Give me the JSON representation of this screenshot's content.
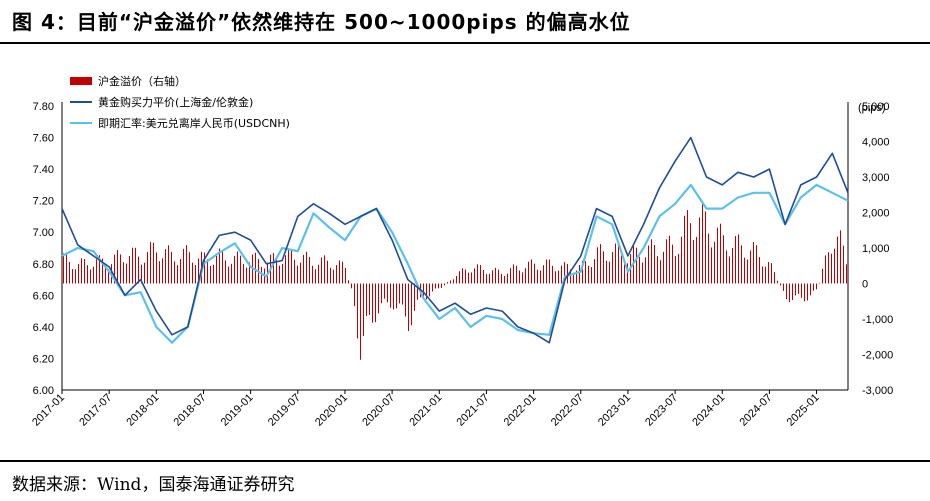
{
  "figure": {
    "title": "图 4：目前“沪金溢价”依然维持在 500~1000pips 的偏高水位",
    "source": "数据来源：Wind，国泰海通证券研究"
  },
  "chart_data": {
    "type": "line",
    "right_unit": "(pips)",
    "left_axis": {
      "ylim": [
        6.0,
        7.8
      ],
      "ticks": [
        "6.00",
        "6.20",
        "6.40",
        "6.60",
        "6.80",
        "7.00",
        "7.20",
        "7.40",
        "7.60",
        "7.80"
      ]
    },
    "right_axis": {
      "ylim": [
        -3000,
        5000
      ],
      "ticks": [
        "-3,000",
        "-2,000",
        "-1,000",
        "0",
        "1,000",
        "2,000",
        "3,000",
        "4,000",
        "5,000"
      ]
    },
    "x_ticks": [
      "2017-01",
      "2017-07",
      "2018-01",
      "2018-07",
      "2019-01",
      "2019-07",
      "2020-01",
      "2020-07",
      "2021-01",
      "2021-07",
      "2022-01",
      "2022-07",
      "2023-01",
      "2023-07",
      "2024-01",
      "2024-07",
      "2025-01"
    ],
    "x_range": [
      "2017-01",
      "2025-05"
    ],
    "legend_position": "top-left",
    "series": [
      {
        "name": "沪金溢价（右轴）",
        "type": "bar",
        "axis": "right",
        "color": "#c00000",
        "points": [
          [
            "2017-01",
            900
          ],
          [
            "2017-03",
            700
          ],
          [
            "2017-05",
            800
          ],
          [
            "2017-07",
            800
          ],
          [
            "2017-09",
            1100
          ],
          [
            "2017-11",
            1000
          ],
          [
            "2018-01",
            1300
          ],
          [
            "2018-03",
            1000
          ],
          [
            "2018-05",
            1100
          ],
          [
            "2018-07",
            900
          ],
          [
            "2018-09",
            1000
          ],
          [
            "2018-11",
            900
          ],
          [
            "2019-01",
            900
          ],
          [
            "2019-03",
            800
          ],
          [
            "2019-05",
            1000
          ],
          [
            "2019-07",
            1000
          ],
          [
            "2019-09",
            800
          ],
          [
            "2019-11",
            800
          ],
          [
            "2020-01",
            600
          ],
          [
            "2020-02",
            -500
          ],
          [
            "2020-03",
            -2500
          ],
          [
            "2020-04",
            -1500
          ],
          [
            "2020-05",
            -1000
          ],
          [
            "2020-07",
            -700
          ],
          [
            "2020-09",
            -1400
          ],
          [
            "2020-11",
            -500
          ],
          [
            "2021-01",
            -200
          ],
          [
            "2021-03",
            300
          ],
          [
            "2021-05",
            600
          ],
          [
            "2021-07",
            500
          ],
          [
            "2021-09",
            400
          ],
          [
            "2021-11",
            600
          ],
          [
            "2022-01",
            700
          ],
          [
            "2022-03",
            700
          ],
          [
            "2022-05",
            600
          ],
          [
            "2022-07",
            600
          ],
          [
            "2022-09",
            1100
          ],
          [
            "2022-11",
            1200
          ],
          [
            "2023-01",
            1000
          ],
          [
            "2023-03",
            1200
          ],
          [
            "2023-05",
            1300
          ],
          [
            "2023-07",
            1400
          ],
          [
            "2023-09",
            2400
          ],
          [
            "2023-11",
            2200
          ],
          [
            "2024-01",
            1600
          ],
          [
            "2024-03",
            1400
          ],
          [
            "2024-05",
            1200
          ],
          [
            "2024-07",
            700
          ],
          [
            "2024-09",
            -500
          ],
          [
            "2024-11",
            -600
          ],
          [
            "2025-01",
            -300
          ],
          [
            "2025-03",
            1800
          ],
          [
            "2025-04",
            1500
          ],
          [
            "2025-05",
            600
          ]
        ]
      },
      {
        "name": "黄金购买力平价(上海金/伦敦金)",
        "type": "line",
        "axis": "left",
        "color": "#1f4e96",
        "points": [
          [
            "2017-01",
            7.15
          ],
          [
            "2017-03",
            6.92
          ],
          [
            "2017-05",
            6.85
          ],
          [
            "2017-07",
            6.78
          ],
          [
            "2017-09",
            6.6
          ],
          [
            "2017-11",
            6.7
          ],
          [
            "2018-01",
            6.5
          ],
          [
            "2018-03",
            6.35
          ],
          [
            "2018-05",
            6.4
          ],
          [
            "2018-07",
            6.82
          ],
          [
            "2018-09",
            6.98
          ],
          [
            "2018-11",
            7.0
          ],
          [
            "2019-01",
            6.95
          ],
          [
            "2019-03",
            6.8
          ],
          [
            "2019-05",
            6.82
          ],
          [
            "2019-07",
            7.1
          ],
          [
            "2019-09",
            7.18
          ],
          [
            "2019-11",
            7.12
          ],
          [
            "2020-01",
            7.05
          ],
          [
            "2020-03",
            7.1
          ],
          [
            "2020-05",
            7.15
          ],
          [
            "2020-07",
            6.95
          ],
          [
            "2020-09",
            6.7
          ],
          [
            "2020-11",
            6.62
          ],
          [
            "2021-01",
            6.5
          ],
          [
            "2021-03",
            6.55
          ],
          [
            "2021-05",
            6.48
          ],
          [
            "2021-07",
            6.52
          ],
          [
            "2021-09",
            6.5
          ],
          [
            "2021-11",
            6.4
          ],
          [
            "2022-01",
            6.36
          ],
          [
            "2022-03",
            6.3
          ],
          [
            "2022-05",
            6.7
          ],
          [
            "2022-07",
            6.85
          ],
          [
            "2022-09",
            7.15
          ],
          [
            "2022-11",
            7.1
          ],
          [
            "2023-01",
            6.85
          ],
          [
            "2023-03",
            7.05
          ],
          [
            "2023-05",
            7.28
          ],
          [
            "2023-07",
            7.45
          ],
          [
            "2023-09",
            7.6
          ],
          [
            "2023-11",
            7.35
          ],
          [
            "2024-01",
            7.3
          ],
          [
            "2024-03",
            7.38
          ],
          [
            "2024-05",
            7.35
          ],
          [
            "2024-07",
            7.4
          ],
          [
            "2024-09",
            7.05
          ],
          [
            "2024-11",
            7.3
          ],
          [
            "2025-01",
            7.35
          ],
          [
            "2025-03",
            7.5
          ],
          [
            "2025-05",
            7.25
          ]
        ]
      },
      {
        "name": "即期汇率:美元兑离岸人民币(USDCNH)",
        "type": "line",
        "axis": "left",
        "color": "#5bc0eb",
        "points": [
          [
            "2017-01",
            6.85
          ],
          [
            "2017-03",
            6.9
          ],
          [
            "2017-05",
            6.88
          ],
          [
            "2017-07",
            6.75
          ],
          [
            "2017-09",
            6.6
          ],
          [
            "2017-11",
            6.62
          ],
          [
            "2018-01",
            6.4
          ],
          [
            "2018-03",
            6.3
          ],
          [
            "2018-05",
            6.4
          ],
          [
            "2018-07",
            6.8
          ],
          [
            "2018-09",
            6.87
          ],
          [
            "2018-11",
            6.93
          ],
          [
            "2019-01",
            6.78
          ],
          [
            "2019-03",
            6.72
          ],
          [
            "2019-05",
            6.9
          ],
          [
            "2019-07",
            6.88
          ],
          [
            "2019-09",
            7.12
          ],
          [
            "2019-11",
            7.03
          ],
          [
            "2020-01",
            6.95
          ],
          [
            "2020-03",
            7.1
          ],
          [
            "2020-05",
            7.15
          ],
          [
            "2020-07",
            7.0
          ],
          [
            "2020-09",
            6.8
          ],
          [
            "2020-11",
            6.58
          ],
          [
            "2021-01",
            6.45
          ],
          [
            "2021-03",
            6.52
          ],
          [
            "2021-05",
            6.4
          ],
          [
            "2021-07",
            6.47
          ],
          [
            "2021-09",
            6.45
          ],
          [
            "2021-11",
            6.38
          ],
          [
            "2022-01",
            6.36
          ],
          [
            "2022-03",
            6.35
          ],
          [
            "2022-05",
            6.72
          ],
          [
            "2022-07",
            6.75
          ],
          [
            "2022-09",
            7.1
          ],
          [
            "2022-11",
            7.05
          ],
          [
            "2023-01",
            6.75
          ],
          [
            "2023-03",
            6.9
          ],
          [
            "2023-05",
            7.1
          ],
          [
            "2023-07",
            7.18
          ],
          [
            "2023-09",
            7.3
          ],
          [
            "2023-11",
            7.15
          ],
          [
            "2024-01",
            7.15
          ],
          [
            "2024-03",
            7.22
          ],
          [
            "2024-05",
            7.25
          ],
          [
            "2024-07",
            7.25
          ],
          [
            "2024-09",
            7.05
          ],
          [
            "2024-11",
            7.22
          ],
          [
            "2025-01",
            7.3
          ],
          [
            "2025-03",
            7.25
          ],
          [
            "2025-05",
            7.2
          ]
        ]
      }
    ]
  }
}
